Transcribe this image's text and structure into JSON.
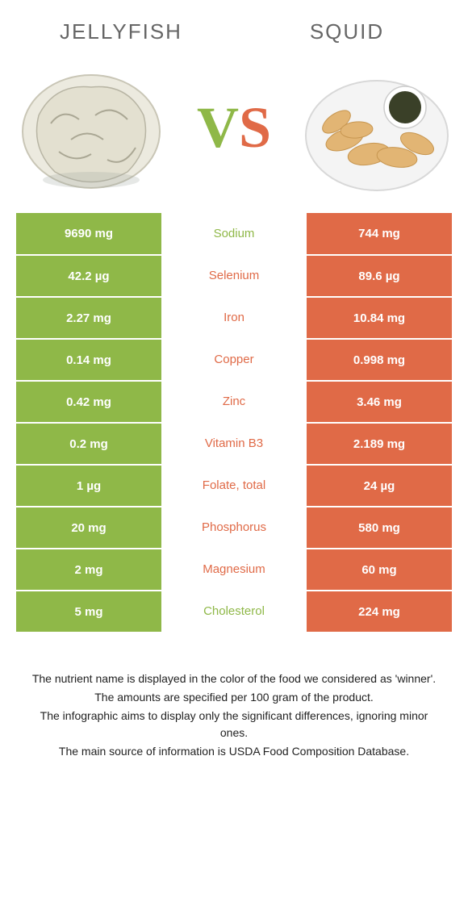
{
  "left": {
    "name": "Jellyfish",
    "color": "#8fb848"
  },
  "right": {
    "name": "Squid",
    "color": "#e06a47"
  },
  "vs": {
    "v": "V",
    "s": "S"
  },
  "rows": [
    {
      "left": "9690 mg",
      "label": "Sodium",
      "right": "744 mg",
      "winner": "left"
    },
    {
      "left": "42.2 µg",
      "label": "Selenium",
      "right": "89.6 µg",
      "winner": "right"
    },
    {
      "left": "2.27 mg",
      "label": "Iron",
      "right": "10.84 mg",
      "winner": "right"
    },
    {
      "left": "0.14 mg",
      "label": "Copper",
      "right": "0.998 mg",
      "winner": "right"
    },
    {
      "left": "0.42 mg",
      "label": "Zinc",
      "right": "3.46 mg",
      "winner": "right"
    },
    {
      "left": "0.2 mg",
      "label": "Vitamin B3",
      "right": "2.189 mg",
      "winner": "right"
    },
    {
      "left": "1 µg",
      "label": "Folate, total",
      "right": "24 µg",
      "winner": "right"
    },
    {
      "left": "20 mg",
      "label": "Phosphorus",
      "right": "580 mg",
      "winner": "right"
    },
    {
      "left": "2 mg",
      "label": "Magnesium",
      "right": "60 mg",
      "winner": "right"
    },
    {
      "left": "5 mg",
      "label": "Cholesterol",
      "right": "224 mg",
      "winner": "left"
    }
  ],
  "notes": [
    "The nutrient name is displayed in the color of the food we considered as 'winner'.",
    "The amounts are specified per 100 gram of the product.",
    "The infographic aims to display only the significant differences, ignoring minor ones.",
    "The main source of information is USDA Food Composition Database."
  ],
  "jellyfish_svg": {
    "bg": "#ffffff",
    "body_fill": "#e6e3d5",
    "body_stroke": "#b3b0a0",
    "shadow": "#9aa39a"
  },
  "squid_svg": {
    "plate": "#f4f4f4",
    "plate_edge": "#d8d8d8",
    "fried": "#e2b574",
    "sauce_bowl": "#ffffff",
    "sauce": "#3a4028"
  }
}
